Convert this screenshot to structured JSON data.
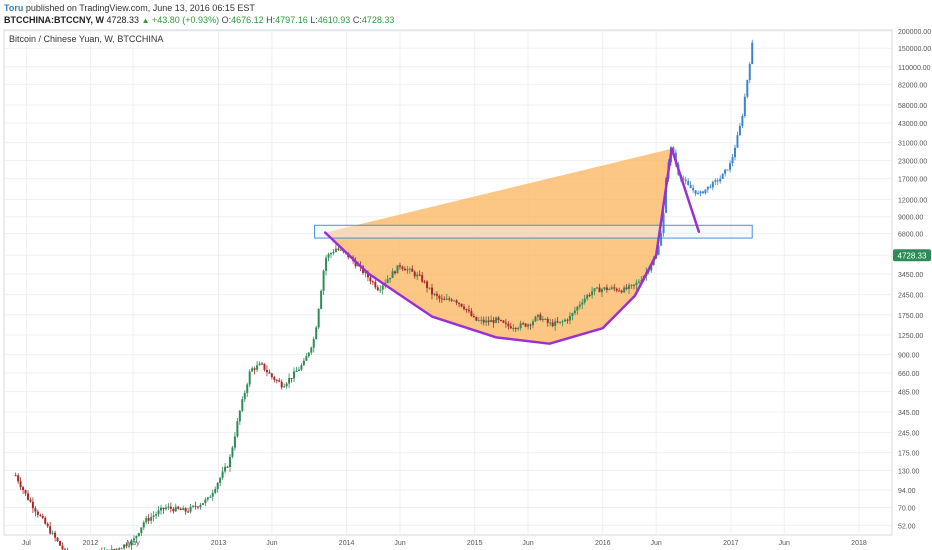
{
  "header": {
    "author": "Toru",
    "published": "published on TradingView.com, June 13, 2016 06:15 EST",
    "symbol": "BTCCHINA:BTCCNY, W",
    "last": "4728.33",
    "change": "+43.80 (+0.93%)",
    "o_label": "O:",
    "o_value": "4676.12",
    "h_label": "H:",
    "h_value": "4797.16",
    "l_label": "L:",
    "l_value": "4610.93",
    "c_label": "C:",
    "c_value": "4728.33"
  },
  "chart_legend": "Bitcoin / Chinese Yuan, W, BTCCHINA",
  "price_badge": "4728.33",
  "colors": {
    "up": "#2e8b57",
    "down": "#a52a2a",
    "projection": "#3d85c6",
    "cup_fill": "#fbb45c",
    "cup_line": "#9b30d0",
    "badge": "#2e8b57",
    "grid": "#eef0f3",
    "zone_fill": "#eaf2fb",
    "zone_stroke": "#4a90d9"
  },
  "chart_data": {
    "type": "candlestick",
    "scale": "log",
    "x_range": [
      "2011-05",
      "2018-04"
    ],
    "y_range": [
      45,
      200000
    ],
    "y_ticks": [
      "200000.00",
      "150000.00",
      "110000.00",
      "82000.00",
      "58000.00",
      "43000.00",
      "31000.00",
      "23000.00",
      "17000.00",
      "12000.00",
      "9000.00",
      "6800.00",
      "4728.33",
      "3450.00",
      "2450.00",
      "1750.00",
      "1250.00",
      "900.00",
      "660.00",
      "485.00",
      "345.00",
      "245.00",
      "175.00",
      "130.00",
      "94.00",
      "70.00",
      "52.00"
    ],
    "x_ticks": [
      {
        "label": "Jul",
        "t": "2011-07"
      },
      {
        "label": "2012",
        "t": "2012-01"
      },
      {
        "label": "May",
        "t": "2012-05"
      },
      {
        "label": "2013",
        "t": "2013-01"
      },
      {
        "label": "Jun",
        "t": "2013-06"
      },
      {
        "label": "2014",
        "t": "2014-01"
      },
      {
        "label": "Jun",
        "t": "2014-06"
      },
      {
        "label": "2015",
        "t": "2015-01"
      },
      {
        "label": "Jun",
        "t": "2015-06"
      },
      {
        "label": "2016",
        "t": "2016-01"
      },
      {
        "label": "Jun",
        "t": "2016-06"
      },
      {
        "label": "2017",
        "t": "2017-01"
      },
      {
        "label": "Jun",
        "t": "2017-06"
      },
      {
        "label": "2018",
        "t": "2018-01"
      }
    ],
    "price_path": [
      {
        "t": "2011-06",
        "p": 120
      },
      {
        "t": "2011-07",
        "p": 85
      },
      {
        "t": "2011-08",
        "p": 65
      },
      {
        "t": "2011-09",
        "p": 50
      },
      {
        "t": "2011-11",
        "p": 30
      },
      {
        "t": "2012-03",
        "p": 34
      },
      {
        "t": "2012-05",
        "p": 40
      },
      {
        "t": "2012-06",
        "p": 55
      },
      {
        "t": "2012-08",
        "p": 70
      },
      {
        "t": "2012-10",
        "p": 66
      },
      {
        "t": "2012-12",
        "p": 80
      },
      {
        "t": "2013-02",
        "p": 150
      },
      {
        "t": "2013-03",
        "p": 350
      },
      {
        "t": "2013-04",
        "p": 700
      },
      {
        "t": "2013-05",
        "p": 760
      },
      {
        "t": "2013-06",
        "p": 620
      },
      {
        "t": "2013-07",
        "p": 540
      },
      {
        "t": "2013-08",
        "p": 640
      },
      {
        "t": "2013-09",
        "p": 780
      },
      {
        "t": "2013-10",
        "p": 1200
      },
      {
        "t": "2013-11",
        "p": 4500
      },
      {
        "t": "2013-12",
        "p": 5300
      },
      {
        "t": "2014-01",
        "p": 4800
      },
      {
        "t": "2014-02",
        "p": 4000
      },
      {
        "t": "2014-03",
        "p": 3300
      },
      {
        "t": "2014-04",
        "p": 2700
      },
      {
        "t": "2014-05",
        "p": 3300
      },
      {
        "t": "2014-06",
        "p": 4000
      },
      {
        "t": "2014-07",
        "p": 3600
      },
      {
        "t": "2014-08",
        "p": 3200
      },
      {
        "t": "2014-09",
        "p": 2500
      },
      {
        "t": "2014-10",
        "p": 2200
      },
      {
        "t": "2014-11",
        "p": 2300
      },
      {
        "t": "2014-12",
        "p": 2000
      },
      {
        "t": "2015-01",
        "p": 1600
      },
      {
        "t": "2015-02",
        "p": 1550
      },
      {
        "t": "2015-03",
        "p": 1600
      },
      {
        "t": "2015-04",
        "p": 1450
      },
      {
        "t": "2015-05",
        "p": 1450
      },
      {
        "t": "2015-06",
        "p": 1500
      },
      {
        "t": "2015-07",
        "p": 1700
      },
      {
        "t": "2015-08",
        "p": 1500
      },
      {
        "t": "2015-09",
        "p": 1520
      },
      {
        "t": "2015-10",
        "p": 1700
      },
      {
        "t": "2015-11",
        "p": 2200
      },
      {
        "t": "2015-12",
        "p": 2600
      },
      {
        "t": "2016-01",
        "p": 2700
      },
      {
        "t": "2016-02",
        "p": 2700
      },
      {
        "t": "2016-03",
        "p": 2650
      },
      {
        "t": "2016-04",
        "p": 2850
      },
      {
        "t": "2016-05",
        "p": 3500
      },
      {
        "t": "2016-06",
        "p": 4728
      }
    ],
    "projection_path": [
      {
        "t": "2016-06",
        "p": 4728
      },
      {
        "t": "2016-06-20",
        "p": 8000
      },
      {
        "t": "2016-07",
        "p": 20000
      },
      {
        "t": "2016-07-15",
        "p": 30000
      },
      {
        "t": "2016-08",
        "p": 19000
      },
      {
        "t": "2016-09",
        "p": 15000
      },
      {
        "t": "2016-10",
        "p": 13000
      },
      {
        "t": "2016-11",
        "p": 15000
      },
      {
        "t": "2016-12",
        "p": 17000
      },
      {
        "t": "2017-01",
        "p": 22000
      },
      {
        "t": "2017-02",
        "p": 45000
      },
      {
        "t": "2017-03",
        "p": 160000
      }
    ],
    "cup_fill_polygon": [
      {
        "t": "2013-11",
        "p": 6900
      },
      {
        "t": "2016-07-15",
        "p": 28000
      }
    ],
    "cup_curve": [
      {
        "t": "2013-11",
        "p": 6900
      },
      {
        "t": "2014-03",
        "p": 3500
      },
      {
        "t": "2014-09",
        "p": 1700
      },
      {
        "t": "2015-03",
        "p": 1200
      },
      {
        "t": "2015-08",
        "p": 1080
      },
      {
        "t": "2016-01",
        "p": 1400
      },
      {
        "t": "2016-04",
        "p": 2400
      },
      {
        "t": "2016-06",
        "p": 4728
      },
      {
        "t": "2016-07-15",
        "p": 28000
      }
    ],
    "handle_line": [
      {
        "t": "2016-07-15",
        "p": 28000
      },
      {
        "t": "2016-10",
        "p": 7000
      }
    ],
    "resistance_zone": {
      "t_start": "2013-10",
      "t_end": "2017-03",
      "p_low": 6300,
      "p_high": 7800
    }
  }
}
